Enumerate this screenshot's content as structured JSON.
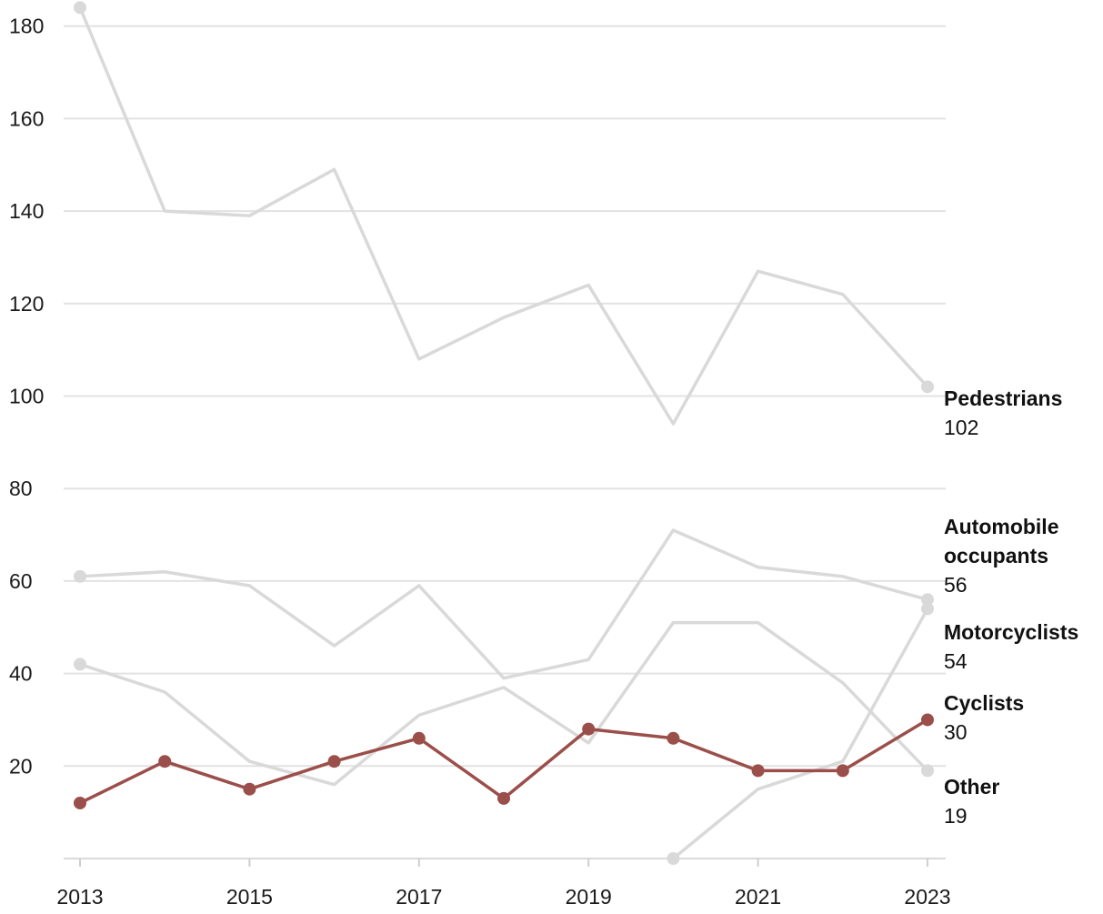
{
  "chart_data": {
    "type": "line",
    "title": "",
    "xlabel": "",
    "ylabel": "",
    "x": [
      2013,
      2014,
      2015,
      2016,
      2017,
      2018,
      2019,
      2020,
      2021,
      2022,
      2023
    ],
    "xticks": [
      2013,
      2015,
      2017,
      2019,
      2021,
      2023
    ],
    "yticks": [
      20,
      40,
      60,
      80,
      100,
      120,
      140,
      160,
      180
    ],
    "ylim": [
      0,
      185
    ],
    "xlim": [
      2013,
      2023
    ],
    "grid": true,
    "legend": "direct labels at right end of lines",
    "colors": {
      "muted": "#d9d9d9",
      "highlight": "#9b4f4b"
    },
    "series": [
      {
        "name": "Pedestrians",
        "end_label": "102",
        "highlight": false,
        "values": [
          184,
          140,
          139,
          149,
          108,
          117,
          124,
          94,
          127,
          122,
          102
        ]
      },
      {
        "name": "Automobile occupants",
        "name_lines": [
          "Automobile",
          "occupants"
        ],
        "end_label": "56",
        "highlight": false,
        "values": [
          61,
          62,
          59,
          46,
          59,
          39,
          43,
          71,
          63,
          61,
          56
        ]
      },
      {
        "name": "Motorcyclists",
        "end_label": "54",
        "highlight": false,
        "values": [
          null,
          null,
          null,
          null,
          null,
          null,
          null,
          0,
          15,
          21,
          54
        ]
      },
      {
        "name": "Other",
        "end_label": "19",
        "highlight": false,
        "values": [
          42,
          36,
          21,
          16,
          31,
          37,
          25,
          51,
          51,
          38,
          19
        ]
      },
      {
        "name": "Cyclists",
        "end_label": "30",
        "highlight": true,
        "values": [
          12,
          21,
          15,
          21,
          26,
          13,
          28,
          26,
          19,
          19,
          30
        ]
      }
    ]
  }
}
